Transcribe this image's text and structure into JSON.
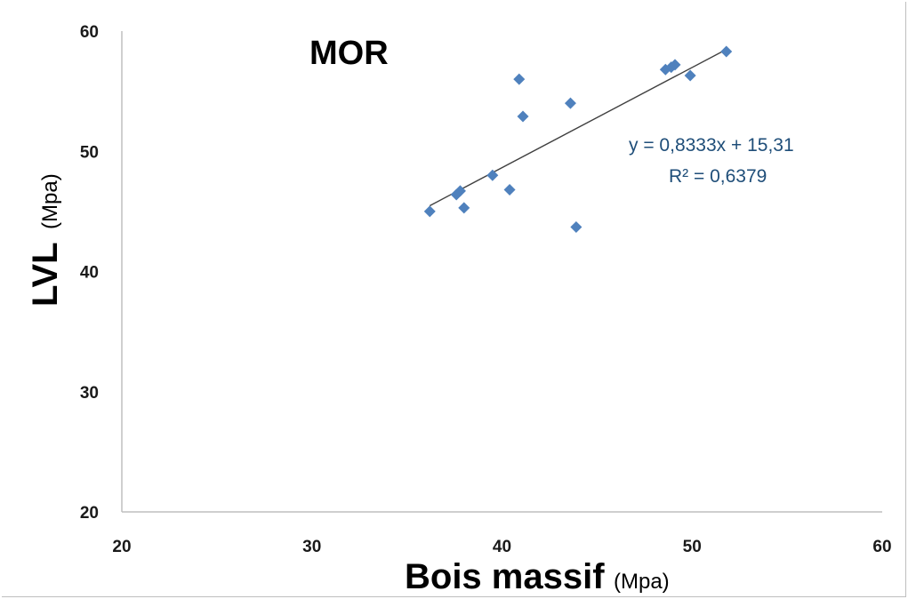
{
  "chart_data": {
    "type": "scatter",
    "title": "MOR",
    "xlabel": "Bois massif",
    "xlabel_unit": "(Mpa)",
    "ylabel": "LVL",
    "ylabel_unit": "(Mpa)",
    "xlim": [
      20,
      60
    ],
    "ylim": [
      20,
      60
    ],
    "xticks": [
      "20",
      "30",
      "40",
      "50",
      "60"
    ],
    "yticks": [
      "20",
      "30",
      "40",
      "50",
      "60"
    ],
    "grid": false,
    "marker_color": "#4f81bd",
    "trendline_color": "#404040",
    "trendline": {
      "slope": 0.8333,
      "intercept": 15.31,
      "x_range": [
        36.2,
        51.8
      ],
      "equation": "y = 0,8333x + 15,31",
      "r2": "R² = 0,6379"
    },
    "series": [
      {
        "points": [
          {
            "x": 36.2,
            "y": 45.0
          },
          {
            "x": 37.6,
            "y": 46.4
          },
          {
            "x": 37.8,
            "y": 46.7
          },
          {
            "x": 38.0,
            "y": 45.3
          },
          {
            "x": 39.5,
            "y": 48.0
          },
          {
            "x": 40.4,
            "y": 46.8
          },
          {
            "x": 40.9,
            "y": 56.0
          },
          {
            "x": 41.1,
            "y": 52.9
          },
          {
            "x": 43.6,
            "y": 54.0
          },
          {
            "x": 43.9,
            "y": 43.7
          },
          {
            "x": 48.6,
            "y": 56.8
          },
          {
            "x": 48.9,
            "y": 57.0
          },
          {
            "x": 49.1,
            "y": 57.2
          },
          {
            "x": 49.9,
            "y": 56.3
          },
          {
            "x": 51.8,
            "y": 58.3
          }
        ]
      }
    ]
  }
}
